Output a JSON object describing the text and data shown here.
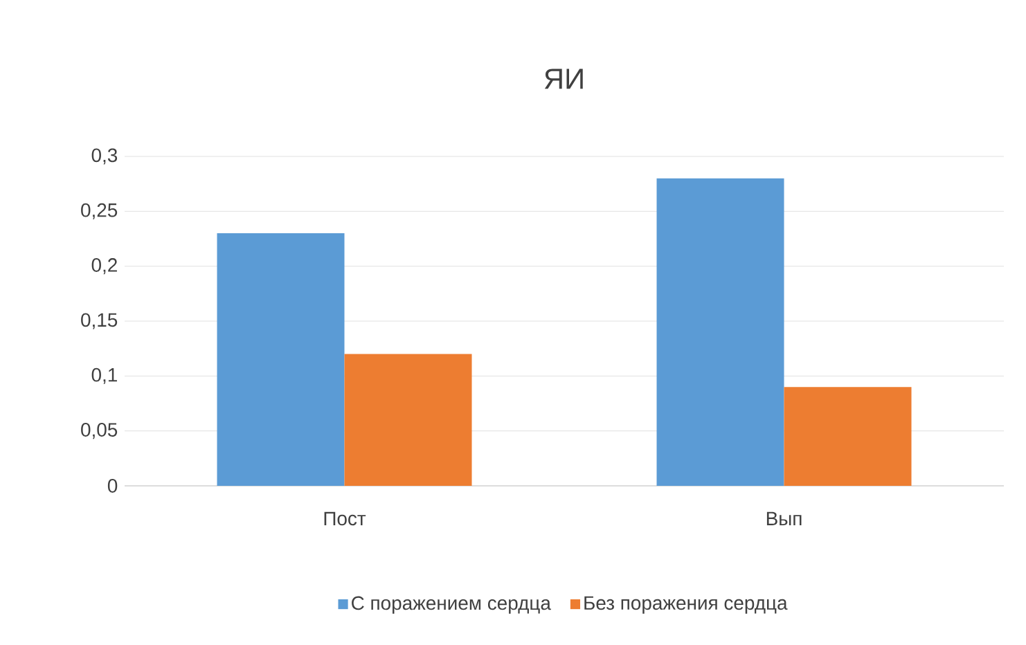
{
  "chart_data": {
    "type": "bar",
    "title": "ЯИ",
    "categories": [
      "Пост",
      "Вып"
    ],
    "series": [
      {
        "name": "С поражением сердца",
        "color": "#5b9bd5",
        "values": [
          0.23,
          0.28
        ]
      },
      {
        "name": "Без поражения сердца",
        "color": "#ed7d31",
        "values": [
          0.12,
          0.09
        ]
      }
    ],
    "ylim": [
      0,
      0.3
    ],
    "yticks": [
      {
        "value": 0,
        "label": "0"
      },
      {
        "value": 0.05,
        "label": "0,05"
      },
      {
        "value": 0.1,
        "label": "0,1"
      },
      {
        "value": 0.15,
        "label": "0,15"
      },
      {
        "value": 0.2,
        "label": "0,2"
      },
      {
        "value": 0.25,
        "label": "0,25"
      },
      {
        "value": 0.3,
        "label": "0,3"
      }
    ],
    "grid": "y",
    "legend": "bottom"
  }
}
